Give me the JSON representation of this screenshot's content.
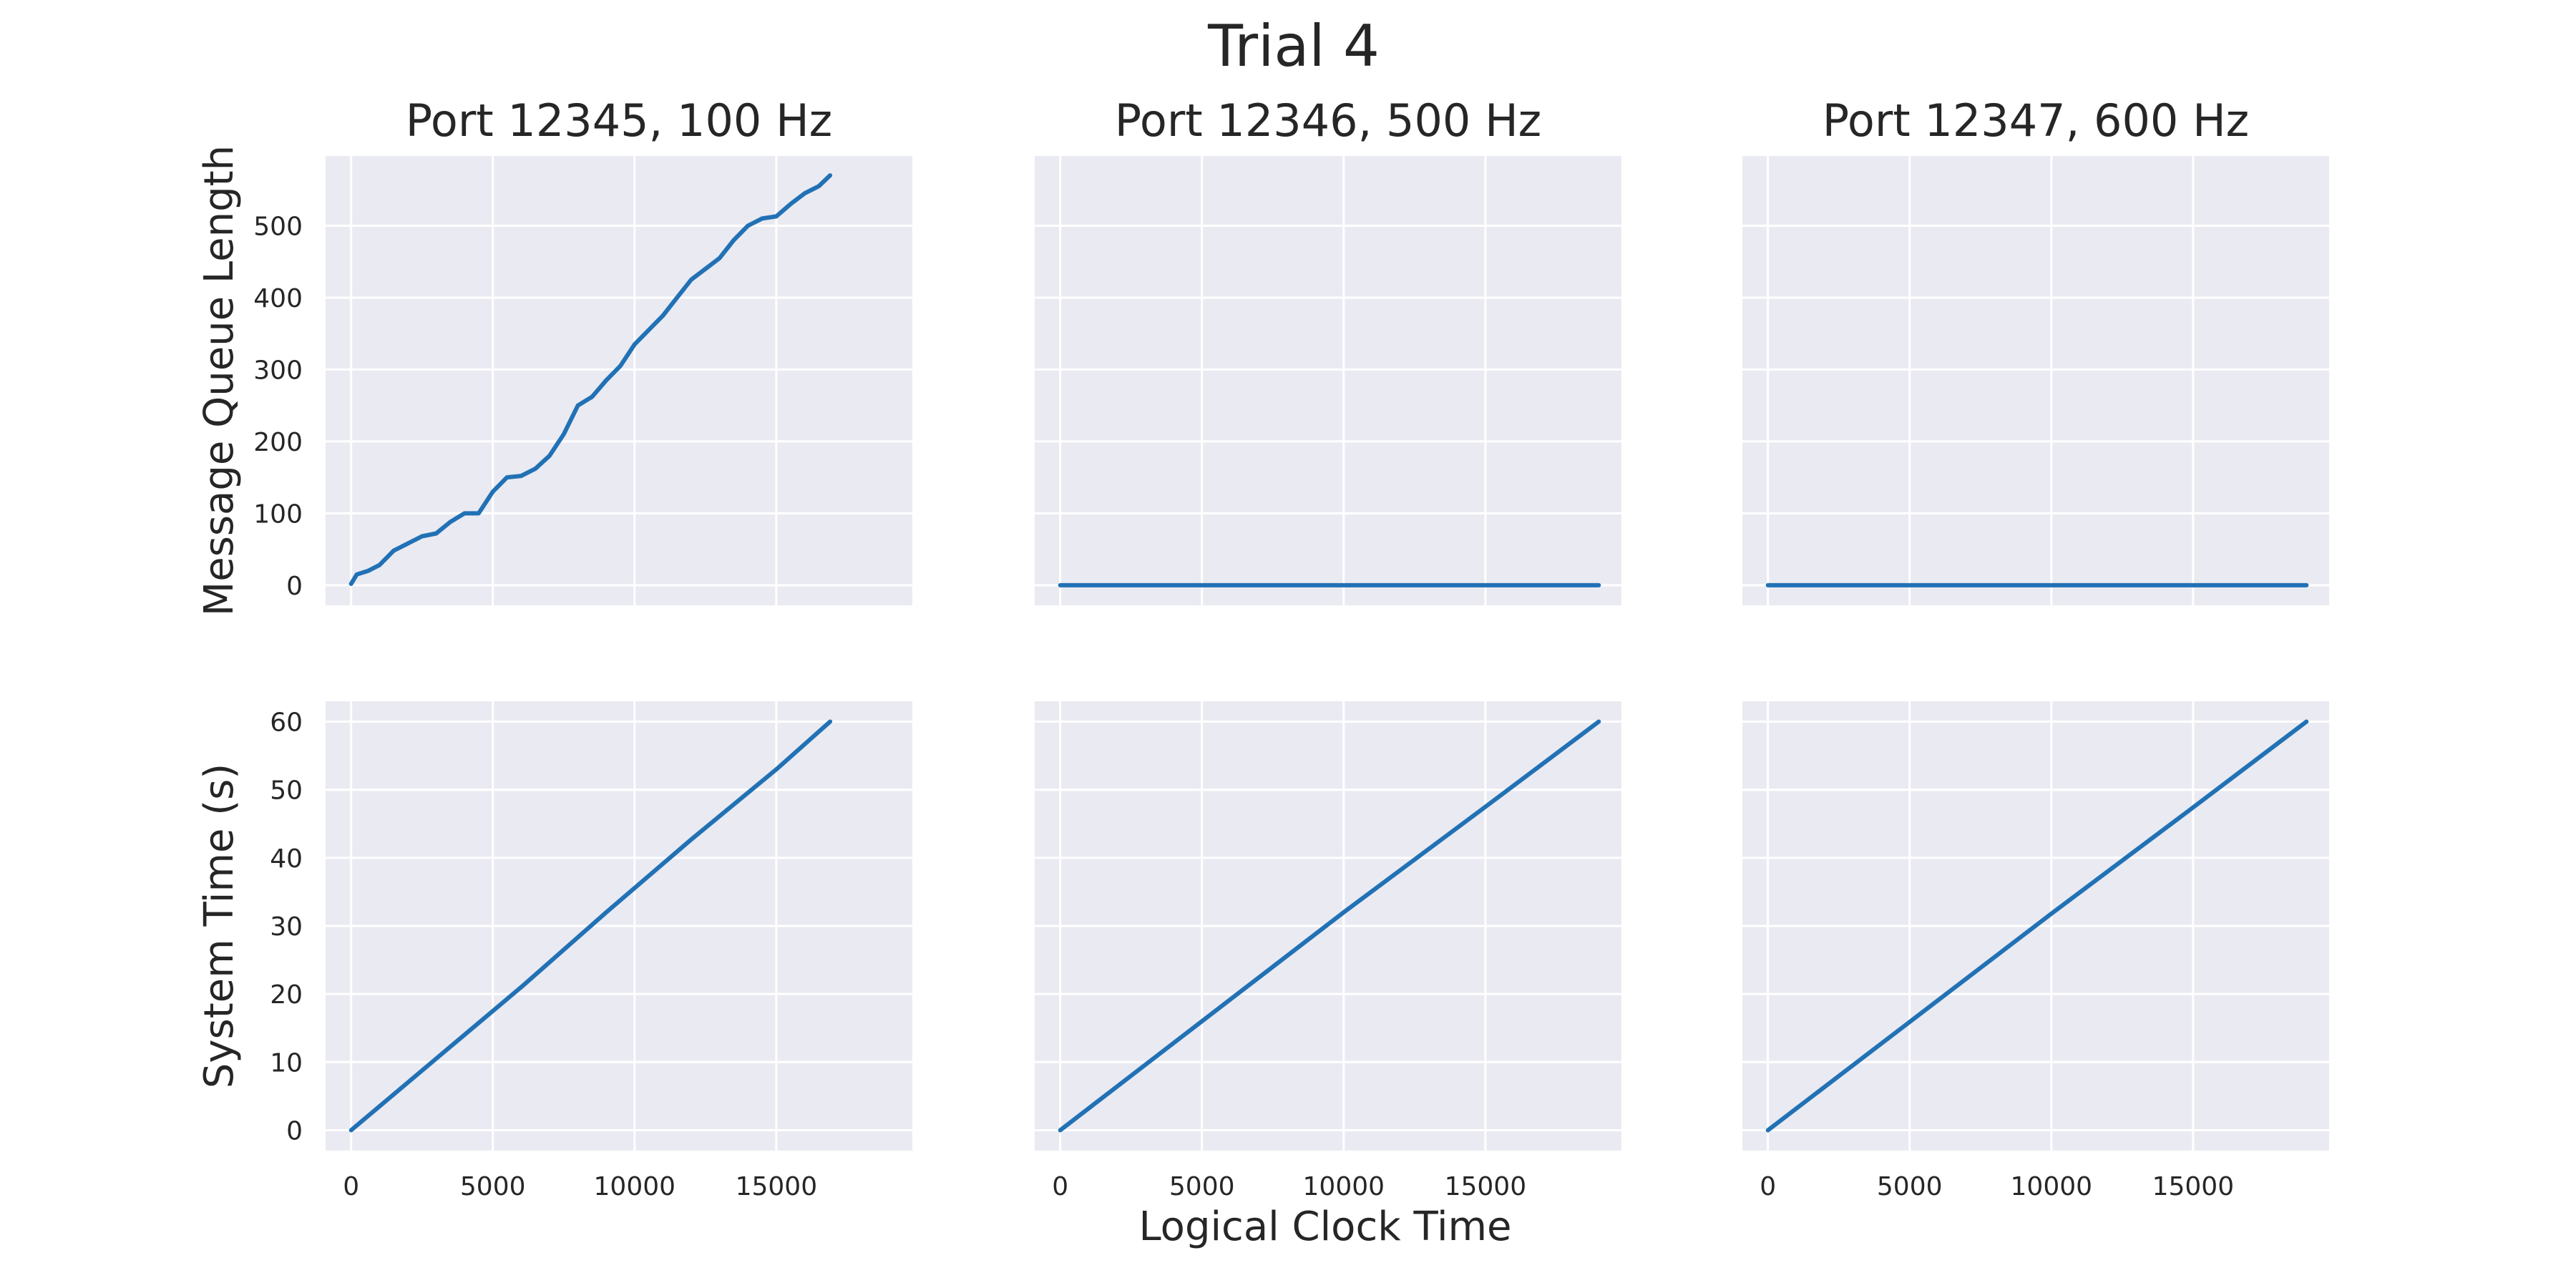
{
  "figure": {
    "title": "Trial 4",
    "xlabel": "Logical Clock Time",
    "colors": {
      "line": "#2171b5",
      "background": "#eaeaf2",
      "grid": "#ffffff"
    }
  },
  "chart_data": [
    {
      "type": "line",
      "title": "Port 12345, 100 Hz",
      "xlabel": "",
      "ylabel": "Message Queue Length",
      "xlim": [
        -900,
        19800
      ],
      "ylim": [
        -28,
        597
      ],
      "xticks": [
        0,
        5000,
        10000,
        15000
      ],
      "yticks": [
        0,
        100,
        200,
        300,
        400,
        500
      ],
      "show_xtick_labels": false,
      "show_ytick_labels": true,
      "series": [
        {
          "x": [
            0,
            200,
            600,
            1000,
            1500,
            2000,
            2500,
            3000,
            3500,
            4000,
            4500,
            5000,
            5500,
            6000,
            6500,
            7000,
            7500,
            8000,
            8500,
            9000,
            9500,
            10000,
            10500,
            11000,
            11500,
            12000,
            12500,
            13000,
            13500,
            14000,
            14500,
            15000,
            15500,
            16000,
            16500,
            16900
          ],
          "y": [
            2,
            15,
            20,
            28,
            48,
            58,
            68,
            72,
            88,
            100,
            100,
            130,
            150,
            152,
            162,
            180,
            210,
            250,
            262,
            285,
            305,
            335,
            355,
            375,
            400,
            425,
            440,
            455,
            480,
            500,
            510,
            513,
            530,
            545,
            555,
            570
          ]
        }
      ]
    },
    {
      "type": "line",
      "title": "Port 12346, 500 Hz",
      "xlabel": "",
      "ylabel": "",
      "xlim": [
        -900,
        19800
      ],
      "ylim": [
        -28,
        597
      ],
      "xticks": [
        0,
        5000,
        10000,
        15000
      ],
      "yticks": [
        0,
        100,
        200,
        300,
        400,
        500
      ],
      "show_xtick_labels": false,
      "show_ytick_labels": false,
      "series": [
        {
          "x": [
            0,
            19000
          ],
          "y": [
            0,
            0
          ]
        }
      ]
    },
    {
      "type": "line",
      "title": "Port 12347, 600 Hz",
      "xlabel": "",
      "ylabel": "",
      "xlim": [
        -900,
        19800
      ],
      "ylim": [
        -28,
        597
      ],
      "xticks": [
        0,
        5000,
        10000,
        15000
      ],
      "yticks": [
        0,
        100,
        200,
        300,
        400,
        500
      ],
      "show_xtick_labels": false,
      "show_ytick_labels": false,
      "series": [
        {
          "x": [
            0,
            19000
          ],
          "y": [
            0,
            0
          ]
        }
      ]
    },
    {
      "type": "line",
      "title": "",
      "xlabel": "",
      "ylabel": "System Time (s)",
      "xlim": [
        -900,
        19800
      ],
      "ylim": [
        -3,
        63
      ],
      "xticks": [
        0,
        5000,
        10000,
        15000
      ],
      "yticks": [
        0,
        10,
        20,
        30,
        40,
        50,
        60
      ],
      "show_xtick_labels": true,
      "show_ytick_labels": true,
      "series": [
        {
          "x": [
            0,
            3000,
            6000,
            9000,
            12000,
            15000,
            16900
          ],
          "y": [
            0,
            10.5,
            21,
            32,
            42.7,
            53,
            60
          ]
        }
      ]
    },
    {
      "type": "line",
      "title": "",
      "xlabel": "",
      "ylabel": "",
      "xlim": [
        -900,
        19800
      ],
      "ylim": [
        -3,
        63
      ],
      "xticks": [
        0,
        5000,
        10000,
        15000
      ],
      "yticks": [
        0,
        10,
        20,
        30,
        40,
        50,
        60
      ],
      "show_xtick_labels": true,
      "show_ytick_labels": false,
      "series": [
        {
          "x": [
            0,
            5000,
            10000,
            15000,
            19000
          ],
          "y": [
            0,
            16,
            32,
            47.5,
            60
          ]
        }
      ]
    },
    {
      "type": "line",
      "title": "",
      "xlabel": "",
      "ylabel": "",
      "xlim": [
        -900,
        19800
      ],
      "ylim": [
        -3,
        63
      ],
      "xticks": [
        0,
        5000,
        10000,
        15000
      ],
      "yticks": [
        0,
        10,
        20,
        30,
        40,
        50,
        60
      ],
      "show_xtick_labels": true,
      "show_ytick_labels": false,
      "series": [
        {
          "x": [
            0,
            5000,
            10000,
            15000,
            19000
          ],
          "y": [
            0,
            15.9,
            31.8,
            47.4,
            60
          ]
        }
      ]
    }
  ]
}
